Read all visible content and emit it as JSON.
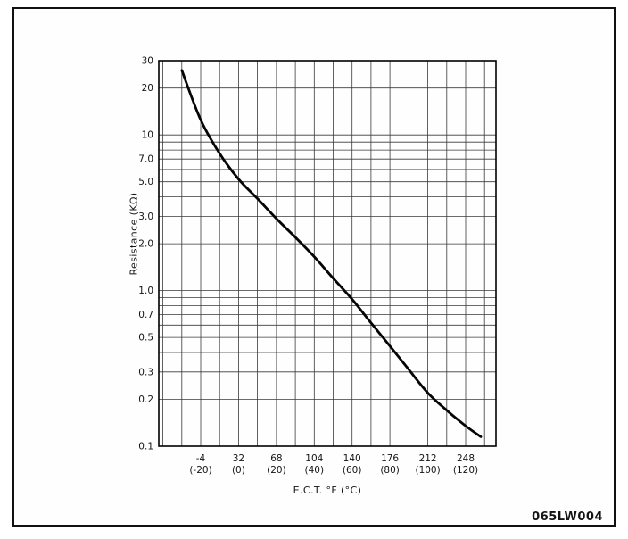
{
  "figure": {
    "code": "065LW004"
  },
  "chart_data": {
    "type": "line",
    "xlabel": "E.C.T. °F (°C)",
    "ylabel": "Resistance (KΩ)",
    "y_scale": "log",
    "ylim": [
      0.1,
      30
    ],
    "grid": "on",
    "legend": "none",
    "y_ticks": [
      {
        "label": "30",
        "value": 30
      },
      {
        "label": "20",
        "value": 20
      },
      {
        "label": "10",
        "value": 10
      },
      {
        "label": "7.0",
        "value": 7
      },
      {
        "label": "5.0",
        "value": 5
      },
      {
        "label": "3.0",
        "value": 3
      },
      {
        "label": "2.0",
        "value": 2
      },
      {
        "label": "1.0",
        "value": 1
      },
      {
        "label": "0.7",
        "value": 0.7
      },
      {
        "label": "0.5",
        "value": 0.5
      },
      {
        "label": "0.3",
        "value": 0.3
      },
      {
        "label": "0.2",
        "value": 0.2
      },
      {
        "label": "0.1",
        "value": 0.1
      }
    ],
    "x_ticks": [
      {
        "label_f": "-4",
        "label_c": "(-20)",
        "value_c": -20
      },
      {
        "label_f": "32",
        "label_c": "(0)",
        "value_c": 0
      },
      {
        "label_f": "68",
        "label_c": "(20)",
        "value_c": 20
      },
      {
        "label_f": "104",
        "label_c": "(40)",
        "value_c": 40
      },
      {
        "label_f": "140",
        "label_c": "(60)",
        "value_c": 60
      },
      {
        "label_f": "176",
        "label_c": "(80)",
        "value_c": 80
      },
      {
        "label_f": "212",
        "label_c": "(100)",
        "value_c": 100
      },
      {
        "label_f": "248",
        "label_c": "(120)",
        "value_c": 120
      }
    ],
    "series": [
      {
        "points": [
          {
            "temp_f": -22,
            "temp_c": -30,
            "resistance_kohm": 26
          },
          {
            "temp_f": -4,
            "temp_c": -20,
            "resistance_kohm": 12.5
          },
          {
            "temp_f": 14,
            "temp_c": -10,
            "resistance_kohm": 7.6
          },
          {
            "temp_f": 32,
            "temp_c": 0,
            "resistance_kohm": 5.2
          },
          {
            "temp_f": 50,
            "temp_c": 10,
            "resistance_kohm": 3.9
          },
          {
            "temp_f": 68,
            "temp_c": 20,
            "resistance_kohm": 2.9
          },
          {
            "temp_f": 86,
            "temp_c": 30,
            "resistance_kohm": 2.2
          },
          {
            "temp_f": 104,
            "temp_c": 40,
            "resistance_kohm": 1.65
          },
          {
            "temp_f": 122,
            "temp_c": 50,
            "resistance_kohm": 1.2
          },
          {
            "temp_f": 140,
            "temp_c": 60,
            "resistance_kohm": 0.88
          },
          {
            "temp_f": 158,
            "temp_c": 70,
            "resistance_kohm": 0.62
          },
          {
            "temp_f": 176,
            "temp_c": 80,
            "resistance_kohm": 0.44
          },
          {
            "temp_f": 194,
            "temp_c": 90,
            "resistance_kohm": 0.31
          },
          {
            "temp_f": 212,
            "temp_c": 100,
            "resistance_kohm": 0.22
          },
          {
            "temp_f": 230,
            "temp_c": 110,
            "resistance_kohm": 0.17
          },
          {
            "temp_f": 248,
            "temp_c": 120,
            "resistance_kohm": 0.135
          },
          {
            "temp_f": 262,
            "temp_c": 128,
            "resistance_kohm": 0.115
          }
        ]
      }
    ]
  }
}
